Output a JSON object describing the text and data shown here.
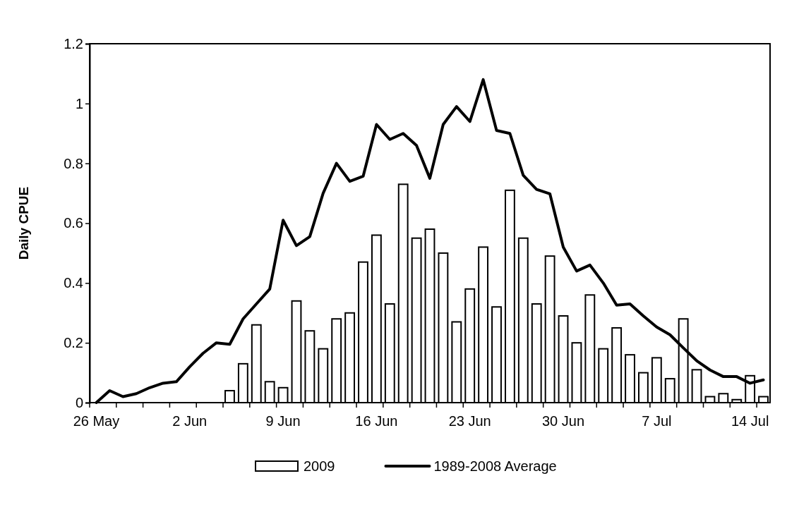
{
  "chart_data": {
    "type": "bar",
    "ylabel": "Daily CPUE",
    "categories": [
      "26 May",
      null,
      null,
      null,
      null,
      null,
      null,
      "2 Jun",
      null,
      null,
      null,
      null,
      null,
      null,
      "9 Jun",
      null,
      null,
      null,
      null,
      null,
      null,
      "16 Jun",
      null,
      null,
      null,
      null,
      null,
      null,
      "23 Jun",
      null,
      null,
      null,
      null,
      null,
      null,
      "30 Jun",
      null,
      null,
      null,
      null,
      null,
      null,
      "7 Jul",
      null,
      null,
      null,
      null,
      null,
      null,
      "14 Jul",
      null
    ],
    "series": [
      {
        "name": "2009",
        "color": "#ffffff",
        "values": [
          null,
          null,
          null,
          null,
          null,
          null,
          null,
          null,
          null,
          null,
          0.04,
          0.13,
          0.26,
          0.07,
          0.05,
          0.34,
          0.24,
          0.18,
          0.28,
          0.3,
          0.47,
          0.56,
          0.33,
          0.73,
          0.55,
          0.58,
          0.5,
          0.27,
          0.38,
          0.52,
          0.32,
          0.71,
          0.55,
          0.33,
          0.49,
          0.29,
          0.2,
          0.36,
          0.18,
          0.25,
          0.16,
          0.1,
          0.15,
          0.08,
          0.28,
          0.11,
          0.02,
          0.03,
          0.01,
          0.09,
          0.02
        ]
      },
      {
        "name": "1989-2008 Average",
        "type": "line",
        "color": "#000000",
        "values": [
          0,
          0.04,
          0.02,
          0.03,
          0.05,
          0.065,
          0.07,
          0.12,
          0.165,
          0.2,
          0.195,
          0.28,
          0.33,
          0.38,
          0.61,
          0.525,
          0.555,
          0.7,
          0.8,
          0.74,
          0.757,
          0.93,
          0.88,
          0.9,
          0.86,
          0.75,
          0.93,
          0.99,
          0.94,
          1.08,
          0.91,
          0.9,
          0.76,
          0.713,
          0.698,
          0.52,
          0.44,
          0.46,
          0.4,
          0.326,
          0.33,
          0.29,
          0.253,
          0.227,
          0.183,
          0.14,
          0.109,
          0.087,
          0.087,
          0.065,
          0.076
        ]
      }
    ],
    "ylim": [
      0,
      1.2
    ],
    "yticks": [
      0,
      0.2,
      0.4,
      0.6,
      0.8,
      1,
      1.2
    ],
    "grid": false,
    "legend": "bottom",
    "marker": "none",
    "line_style": "solid"
  }
}
